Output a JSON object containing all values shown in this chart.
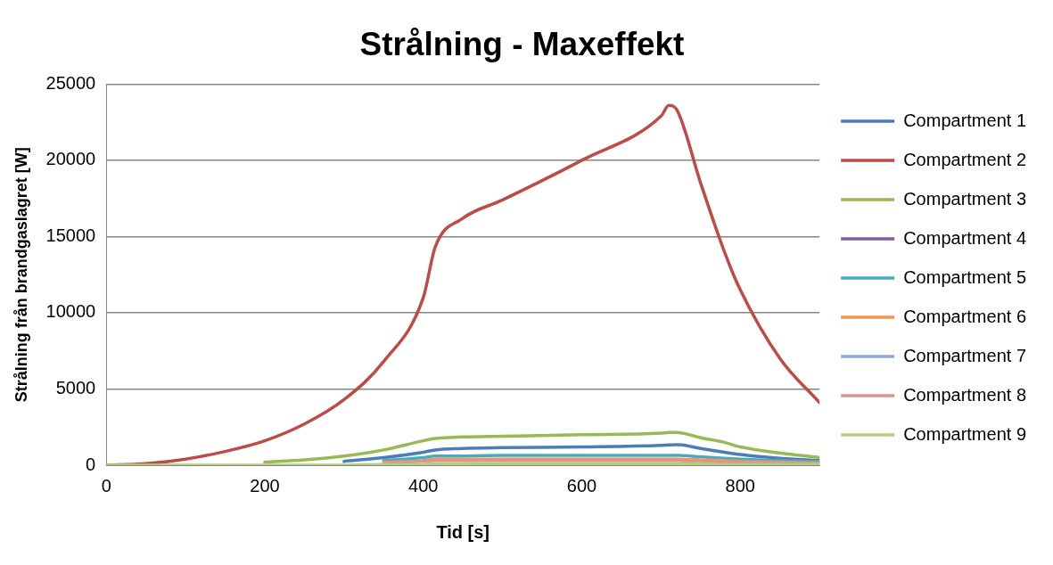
{
  "chart_data": {
    "type": "line",
    "title": "Strålning - Maxeffekt",
    "xlabel": "Tid [s]",
    "ylabel": "Strålning från brandgaslagret [W]",
    "x": [
      0,
      50,
      100,
      150,
      200,
      250,
      300,
      350,
      400,
      415,
      450,
      500,
      600,
      700,
      710,
      720,
      750,
      780,
      800,
      850,
      900
    ],
    "series": [
      {
        "name": "Compartment 1",
        "color": "#4a7ebb",
        "values": [
          null,
          null,
          null,
          null,
          null,
          null,
          250,
          500,
          850,
          1000,
          1100,
          1150,
          1200,
          1300,
          1330,
          1350,
          1100,
          850,
          700,
          450,
          300
        ]
      },
      {
        "name": "Compartment 2",
        "color": "#be4b48",
        "values": [
          0,
          100,
          400,
          900,
          1600,
          2700,
          4300,
          6800,
          11000,
          14300,
          16200,
          17400,
          20000,
          22900,
          23600,
          23300,
          18500,
          14000,
          11500,
          7000,
          4100
        ]
      },
      {
        "name": "Compartment 3",
        "color": "#98b954",
        "values": [
          null,
          null,
          null,
          null,
          200,
          350,
          600,
          1000,
          1600,
          1750,
          1850,
          1900,
          2000,
          2100,
          2150,
          2150,
          1800,
          1500,
          1200,
          800,
          500
        ]
      },
      {
        "name": "Compartment 4",
        "color": "#7d60a0",
        "values": [
          null,
          null,
          null,
          null,
          null,
          null,
          null,
          null,
          null,
          null,
          null,
          null,
          null,
          null,
          null,
          null,
          null,
          null,
          null,
          null,
          null
        ]
      },
      {
        "name": "Compartment 5",
        "color": "#46aac5",
        "values": [
          null,
          null,
          null,
          null,
          null,
          null,
          null,
          300,
          500,
          600,
          600,
          650,
          650,
          650,
          650,
          650,
          550,
          450,
          400,
          300,
          250
        ]
      },
      {
        "name": "Compartment 6",
        "color": "#f79646",
        "values": [
          null,
          null,
          null,
          null,
          null,
          null,
          null,
          200,
          300,
          400,
          400,
          400,
          400,
          400,
          400,
          400,
          350,
          300,
          250,
          200,
          150
        ]
      },
      {
        "name": "Compartment 7",
        "color": "#8fa9d9",
        "values": [
          null,
          null,
          null,
          null,
          null,
          null,
          null,
          null,
          null,
          null,
          null,
          null,
          null,
          null,
          null,
          null,
          null,
          null,
          null,
          null,
          null
        ]
      },
      {
        "name": "Compartment 8",
        "color": "#d99694",
        "values": [
          null,
          null,
          null,
          null,
          null,
          null,
          null,
          150,
          250,
          300,
          300,
          300,
          300,
          300,
          300,
          300,
          250,
          200,
          200,
          150,
          100
        ]
      },
      {
        "name": "Compartment 9",
        "color": "#b3cc82",
        "values": [
          0,
          0,
          0,
          0,
          0,
          0,
          0,
          50,
          50,
          100,
          100,
          100,
          100,
          100,
          100,
          100,
          100,
          50,
          50,
          50,
          50
        ]
      }
    ],
    "xlim": [
      0,
      900
    ],
    "xticks": [
      0,
      200,
      400,
      600,
      800
    ],
    "ylim": [
      0,
      25000
    ],
    "yticks": [
      0,
      5000,
      10000,
      15000,
      20000,
      25000
    ],
    "grid": "y",
    "legend": "right",
    "marker": "none",
    "line_style": "solid"
  }
}
